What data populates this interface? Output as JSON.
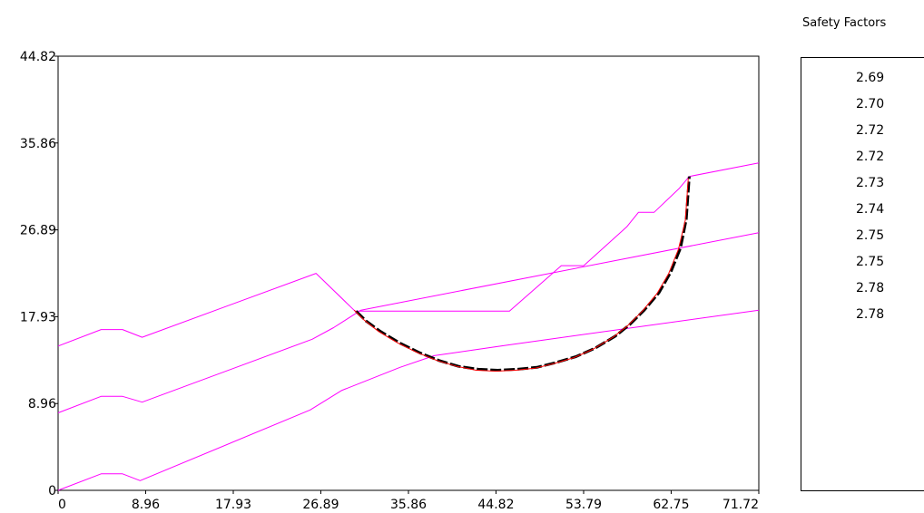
{
  "chart_data": {
    "type": "line",
    "xlim": [
      0,
      71.72
    ],
    "ylim": [
      0,
      44.82
    ],
    "x_ticks": [
      "0",
      "8.96",
      "17.93",
      "26.89",
      "35.86",
      "44.82",
      "53.79",
      "62.75",
      "71.72"
    ],
    "y_ticks": [
      "0",
      "8.96",
      "17.93",
      "26.89",
      "35.86",
      "44.82"
    ],
    "grid": false,
    "colors": {
      "layers": "#ff00ff",
      "critical_circle": "#ff0000",
      "slip_trace": "#000000"
    },
    "series": [
      {
        "points": [
          [
            0,
            14.9
          ],
          [
            4.4,
            16.6
          ],
          [
            6.6,
            16.6
          ],
          [
            8.6,
            15.8
          ],
          [
            26.4,
            22.4
          ],
          [
            30.4,
            18.5
          ],
          [
            46.2,
            18.5
          ],
          [
            51.5,
            23.2
          ],
          [
            53.8,
            23.2
          ],
          [
            58.2,
            27.2
          ],
          [
            59.4,
            28.7
          ],
          [
            61.0,
            28.7
          ],
          [
            63.6,
            31.2
          ],
          [
            64.6,
            32.4
          ],
          [
            71.72,
            33.8
          ]
        ]
      },
      {
        "points": [
          [
            0,
            8.0
          ],
          [
            4.4,
            9.7
          ],
          [
            6.6,
            9.7
          ],
          [
            8.6,
            9.1
          ],
          [
            26.0,
            15.6
          ],
          [
            28.2,
            16.8
          ],
          [
            31.0,
            18.6
          ],
          [
            71.72,
            26.6
          ]
        ]
      },
      {
        "points": [
          [
            0,
            0
          ],
          [
            4.4,
            1.7
          ],
          [
            6.6,
            1.7
          ],
          [
            8.4,
            1.0
          ],
          [
            25.8,
            8.3
          ],
          [
            29.0,
            10.3
          ],
          [
            35.0,
            12.7
          ],
          [
            38.5,
            13.9
          ],
          [
            46.0,
            15.0
          ],
          [
            71.72,
            18.6
          ]
        ]
      },
      {
        "points": [
          [
            30.5,
            18.5
          ],
          [
            31.5,
            17.5
          ],
          [
            33.0,
            16.4
          ],
          [
            35.0,
            15.2
          ],
          [
            37.0,
            14.2
          ],
          [
            39.0,
            13.4
          ],
          [
            41.0,
            12.8
          ],
          [
            43.0,
            12.5
          ],
          [
            45.0,
            12.4
          ],
          [
            47.0,
            12.5
          ],
          [
            49.0,
            12.7
          ],
          [
            51.0,
            13.2
          ],
          [
            53.0,
            13.8
          ],
          [
            55.0,
            14.7
          ],
          [
            57.0,
            15.9
          ],
          [
            58.5,
            17.1
          ],
          [
            60.0,
            18.6
          ],
          [
            61.5,
            20.4
          ],
          [
            62.7,
            22.5
          ],
          [
            63.7,
            25.0
          ],
          [
            64.3,
            28.0
          ],
          [
            64.6,
            32.4
          ]
        ]
      },
      {
        "points": [
          [
            30.3,
            18.6
          ],
          [
            31.3,
            17.6
          ],
          [
            32.8,
            16.4
          ],
          [
            34.8,
            15.2
          ],
          [
            36.8,
            14.2
          ],
          [
            38.8,
            13.4
          ],
          [
            40.8,
            12.8
          ],
          [
            42.8,
            12.4
          ],
          [
            44.8,
            12.3
          ],
          [
            46.8,
            12.4
          ],
          [
            48.8,
            12.6
          ],
          [
            50.8,
            13.1
          ],
          [
            52.8,
            13.7
          ],
          [
            54.8,
            14.6
          ],
          [
            56.8,
            15.8
          ],
          [
            58.3,
            17.0
          ],
          [
            59.8,
            18.5
          ],
          [
            61.3,
            20.3
          ],
          [
            62.5,
            22.4
          ],
          [
            63.5,
            24.9
          ],
          [
            64.2,
            27.9
          ],
          [
            64.5,
            32.2
          ]
        ]
      }
    ]
  },
  "safety_factors": {
    "title": "Safety Factors",
    "values": [
      "2.69",
      "2.70",
      "2.72",
      "2.72",
      "2.73",
      "2.74",
      "2.75",
      "2.75",
      "2.78",
      "2.78"
    ]
  }
}
